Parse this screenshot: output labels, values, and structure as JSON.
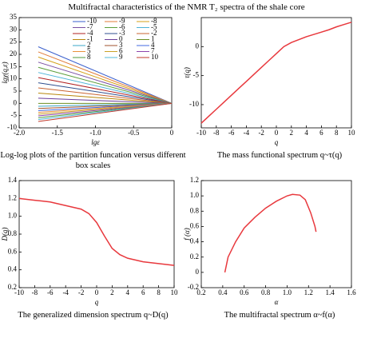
{
  "title": "Multifractal characteristics of the NMR T₂ spectra of the shale core",
  "chart_data": [
    {
      "type": "line",
      "xlabel": "lgε",
      "ylabel": "lgχ(q,ε)",
      "caption": "Log-log plots of the partition funcation versus different box scales",
      "xlim": [
        -2,
        0
      ],
      "ylim": [
        -10,
        35
      ],
      "xticks": [
        {
          "value": -2,
          "label": "-2.0"
        },
        -1.5,
        {
          "value": -1,
          "label": "-1.0"
        },
        -0.5,
        0
      ],
      "yticks": [
        -10,
        -5,
        0,
        5,
        10,
        15,
        20,
        25,
        30,
        35
      ],
      "legend": "upper right",
      "x": [
        -1.75,
        0
      ],
      "series": [
        {
          "name": "-10",
          "color": "#3a5fcd",
          "values": [
            23.1,
            0
          ]
        },
        {
          "name": "-9",
          "color": "#e07b39",
          "values": [
            21.0,
            0
          ]
        },
        {
          "name": "-8",
          "color": "#d4a017",
          "values": [
            18.9,
            0
          ]
        },
        {
          "name": "-7",
          "color": "#7a4fa3",
          "values": [
            16.8,
            0
          ]
        },
        {
          "name": "-6",
          "color": "#5a9e3a",
          "values": [
            14.7,
            0
          ]
        },
        {
          "name": "-5",
          "color": "#4bb3d6",
          "values": [
            12.6,
            0
          ]
        },
        {
          "name": "-4",
          "color": "#b22222",
          "values": [
            10.5,
            0
          ]
        },
        {
          "name": "-3",
          "color": "#2f4f8f",
          "values": [
            8.4,
            0
          ]
        },
        {
          "name": "-2",
          "color": "#c86432",
          "values": [
            6.3,
            0
          ]
        },
        {
          "name": "-1",
          "color": "#b8860b",
          "values": [
            4.2,
            0
          ]
        },
        {
          "name": "0",
          "color": "#6a3d9a",
          "values": [
            2.1,
            0
          ]
        },
        {
          "name": "1",
          "color": "#6b8e23",
          "values": [
            0,
            0
          ]
        },
        {
          "name": "2",
          "color": "#3ba7c9",
          "values": [
            -1.2,
            0
          ]
        },
        {
          "name": "3",
          "color": "#a0522d",
          "values": [
            -2.1,
            0
          ]
        },
        {
          "name": "4",
          "color": "#4169e1",
          "values": [
            -3.0,
            0
          ]
        },
        {
          "name": "5",
          "color": "#e8913a",
          "values": [
            -3.7,
            0
          ]
        },
        {
          "name": "6",
          "color": "#c9a227",
          "values": [
            -4.4,
            0
          ]
        },
        {
          "name": "7",
          "color": "#8e44ad",
          "values": [
            -5.1,
            0
          ]
        },
        {
          "name": "8",
          "color": "#4f9a3c",
          "values": [
            -5.9,
            0
          ]
        },
        {
          "name": "9",
          "color": "#52b8d9",
          "values": [
            -6.6,
            0
          ]
        },
        {
          "name": "10",
          "color": "#c0392b",
          "values": [
            -7.4,
            0
          ]
        }
      ]
    },
    {
      "type": "line",
      "xlabel": "q",
      "ylabel": "τ(q)",
      "caption": "The mass functional spectrum q~τ(q)",
      "xlim": [
        -10,
        10
      ],
      "ylim": [
        -14,
        5
      ],
      "xticks": [
        -10,
        -8,
        -6,
        -4,
        -2,
        0,
        2,
        4,
        6,
        8,
        10
      ],
      "yticks": [
        -10,
        -5,
        0
      ],
      "x": [
        -10,
        -9,
        -8,
        -7,
        -6,
        -5,
        -4,
        -3,
        -2,
        -1,
        0,
        1,
        2,
        3,
        4,
        5,
        6,
        7,
        8,
        9,
        10
      ],
      "color": "#e8383d",
      "values": [
        -13.2,
        -12.0,
        -10.8,
        -9.6,
        -8.4,
        -7.2,
        -6.0,
        -4.8,
        -3.6,
        -2.4,
        -1.2,
        0,
        0.7,
        1.2,
        1.7,
        2.1,
        2.5,
        2.9,
        3.4,
        3.8,
        4.2
      ]
    },
    {
      "type": "line",
      "xlabel": "q",
      "ylabel": "D(q)",
      "caption": "The generalized dimension spectrum q~D(q)",
      "xlim": [
        -10,
        10
      ],
      "ylim": [
        0.2,
        1.4
      ],
      "xticks": [
        -10,
        -8,
        -6,
        -4,
        -2,
        0,
        2,
        4,
        6,
        8,
        10
      ],
      "yticks": [
        0.2,
        0.4,
        0.6,
        0.8,
        {
          "value": 1,
          "label": "1.0"
        },
        1.2,
        1.4
      ],
      "x": [
        -10,
        -9,
        -8,
        -7,
        -6,
        -5,
        -4,
        -3,
        -2,
        -1,
        0,
        1,
        2,
        3,
        4,
        5,
        6,
        7,
        8,
        9,
        10
      ],
      "color": "#e8383d",
      "values": [
        1.2,
        1.19,
        1.18,
        1.17,
        1.16,
        1.14,
        1.12,
        1.1,
        1.08,
        1.03,
        0.93,
        0.78,
        0.64,
        0.57,
        0.53,
        0.51,
        0.49,
        0.48,
        0.47,
        0.46,
        0.45
      ]
    },
    {
      "type": "line",
      "xlabel": "α",
      "ylabel": "f (α)",
      "caption": "The multifractal spectrum α~f(α)",
      "xlim": [
        0.2,
        1.6
      ],
      "ylim": [
        -0.2,
        1.2
      ],
      "xticks": [
        0.2,
        0.4,
        0.6,
        0.8,
        {
          "value": 1,
          "label": "1.0"
        },
        1.2,
        1.4,
        1.6
      ],
      "yticks": [
        -0.2,
        0,
        0.2,
        0.4,
        0.6,
        0.8,
        {
          "value": 1,
          "label": "1.0"
        },
        1.2
      ],
      "x": [
        0.42,
        0.45,
        0.52,
        0.6,
        0.7,
        0.8,
        0.9,
        1.0,
        1.05,
        1.12,
        1.17,
        1.22,
        1.26,
        1.27
      ],
      "color": "#e8383d",
      "values": [
        0.0,
        0.2,
        0.4,
        0.58,
        0.72,
        0.84,
        0.93,
        1.0,
        1.02,
        1.01,
        0.95,
        0.78,
        0.6,
        0.53
      ]
    }
  ]
}
